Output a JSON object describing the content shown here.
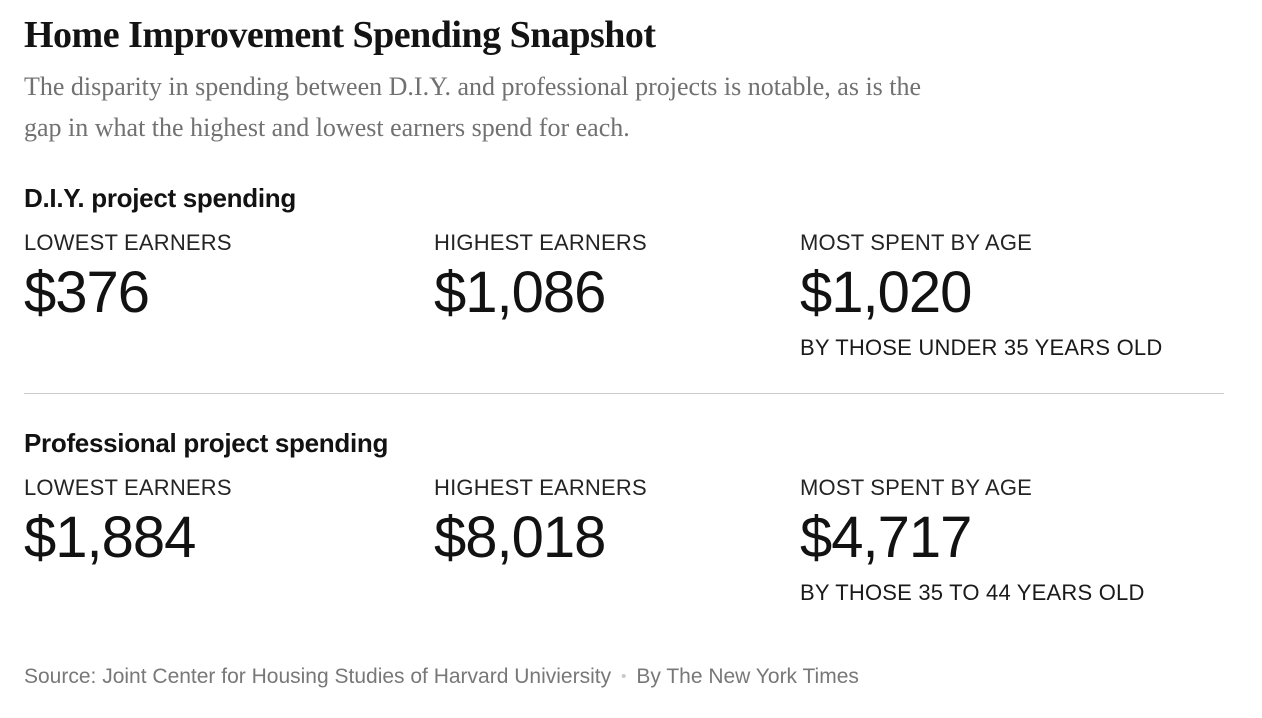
{
  "header": {
    "title": "Home Improvement Spending Snapshot",
    "subtitle": "The disparity in spending between D.I.Y. and professional projects is notable, as is the gap in what the highest and lowest earners spend for each.",
    "subtitle_lines": [
      "The disparity in spending between D.I.Y. and professional projects is notable, as is the",
      "gap in what the highest and lowest earners spend for each."
    ]
  },
  "sections": [
    {
      "heading": "D.I.Y. project spending",
      "stats": [
        {
          "label": "LOWEST EARNERS",
          "value": "$376"
        },
        {
          "label": "HIGHEST EARNERS",
          "value": "$1,086"
        },
        {
          "label": "MOST SPENT BY AGE",
          "value": "$1,020",
          "note": "BY THOSE UNDER 35 YEARS OLD"
        }
      ]
    },
    {
      "heading": "Professional project spending",
      "stats": [
        {
          "label": "LOWEST EARNERS",
          "value": "$1,884"
        },
        {
          "label": "HIGHEST EARNERS",
          "value": "$8,018"
        },
        {
          "label": "MOST SPENT BY AGE",
          "value": "$4,717",
          "note": "BY THOSE 35 TO 44 YEARS OLD"
        }
      ]
    }
  ],
  "footer": {
    "source": "Source: Joint Center for Housing Studies of Harvard Univiersity",
    "separator": "•",
    "byline": "By The New York Times"
  },
  "colors": {
    "background": "#ffffff",
    "text_primary": "#121212",
    "subtitle_gray": "#717171",
    "footer_gray": "#787878",
    "divider_gray": "#cbcbcb",
    "dot_gray": "#c9c9c9"
  },
  "chart_data": {
    "type": "table",
    "title": "Home Improvement Spending Snapshot",
    "subtitle": "The disparity in spending between D.I.Y. and professional projects is notable, as is the gap in what the highest and lowest earners spend for each.",
    "categories": [
      "Lowest earners",
      "Highest earners",
      "Most spent by age"
    ],
    "series": [
      {
        "name": "D.I.Y. project spending",
        "values": [
          376,
          1086,
          1020
        ],
        "age_group_note": "By those under 35 years old"
      },
      {
        "name": "Professional project spending",
        "values": [
          1884,
          8018,
          4717
        ],
        "age_group_note": "By those 35 to 44 years old"
      }
    ],
    "source": "Joint Center for Housing Studies of Harvard Univiersity",
    "byline": "By The New York Times"
  }
}
